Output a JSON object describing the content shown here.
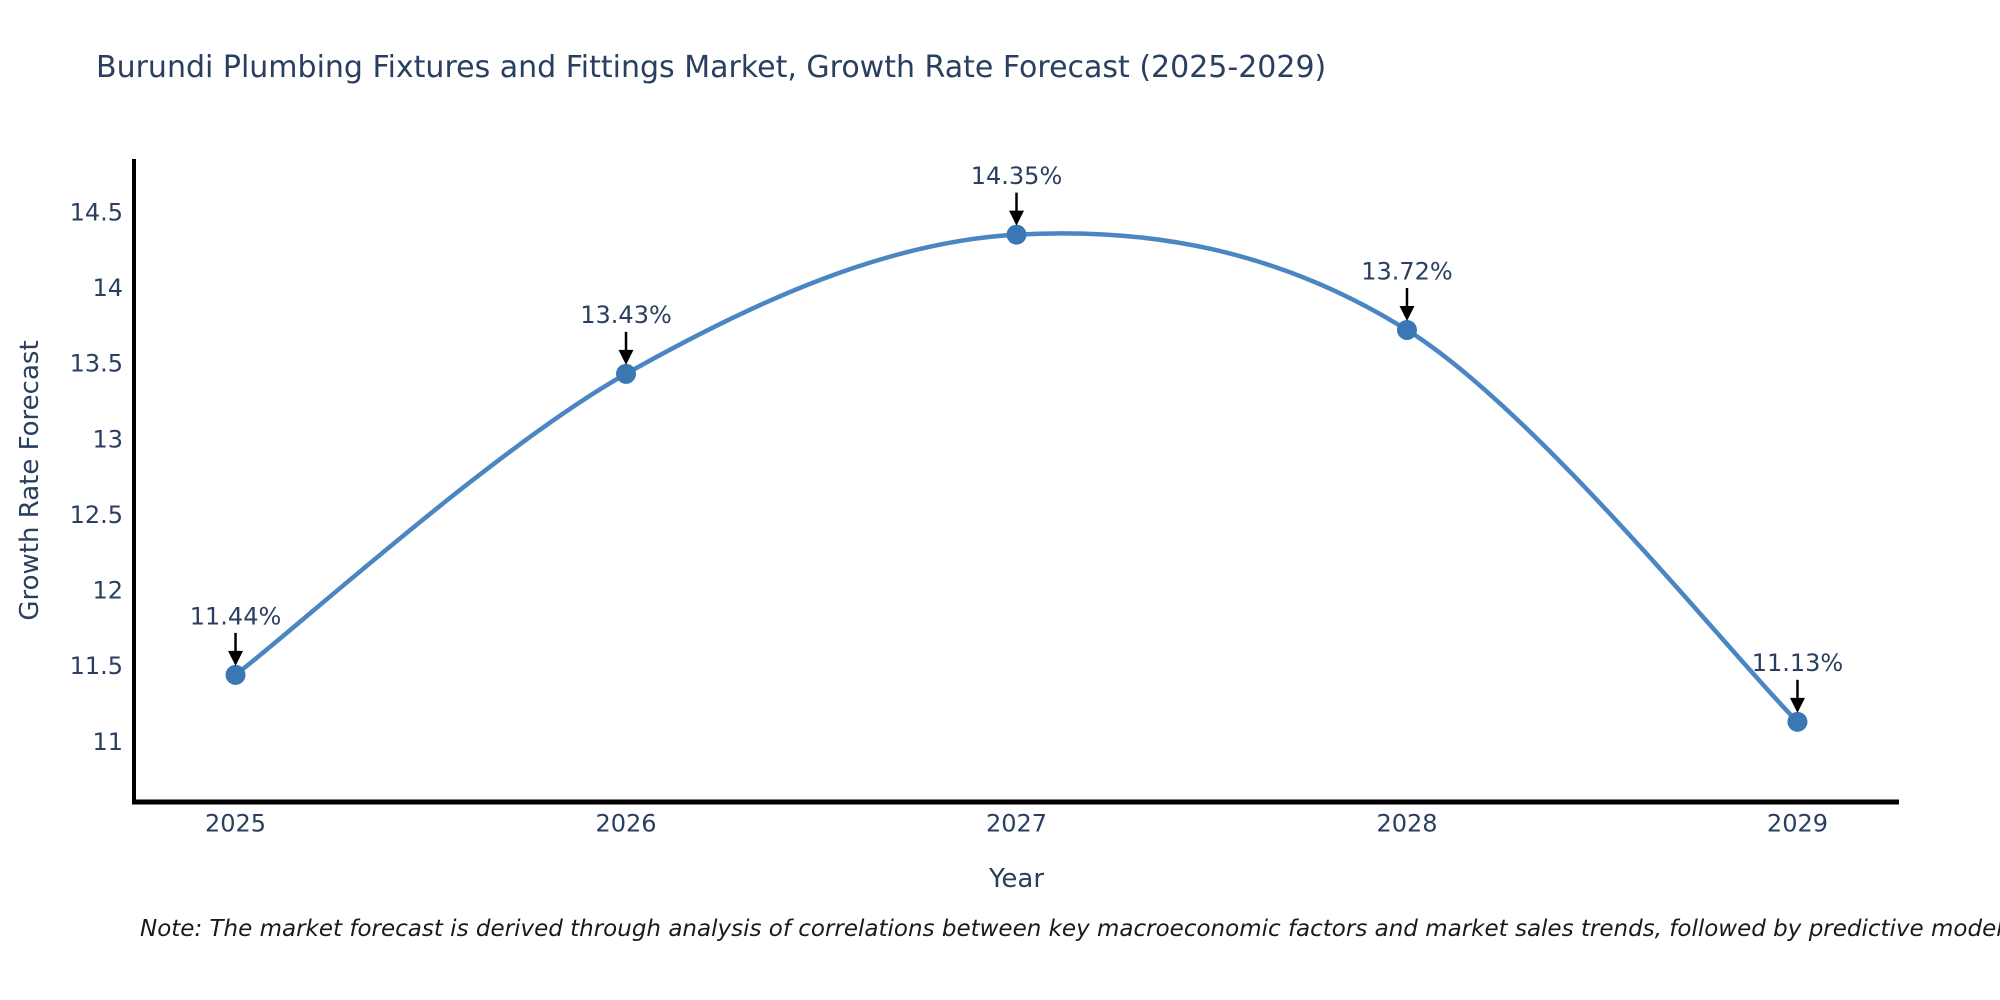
{
  "title": "Burundi Plumbing Fixtures and Fittings Market, Growth Rate Forecast (2025-2029)",
  "note": "Note: The market forecast is derived through analysis of correlations between key macroeconomic factors and market sales trends, followed by predictive modeling to project future sal",
  "chart_data": {
    "type": "line",
    "line_shape": "spline",
    "title": "Burundi Plumbing Fixtures and Fittings Market, Growth Rate Forecast (2025-2029)",
    "xlabel": "Year",
    "ylabel": "Growth Rate Forecast",
    "x": [
      2025,
      2026,
      2027,
      2028,
      2029
    ],
    "y": [
      11.44,
      13.43,
      14.35,
      13.72,
      11.13
    ],
    "point_labels": [
      "11.44%",
      "13.43%",
      "14.35%",
      "13.72%",
      "11.13%"
    ],
    "xtick_labels": [
      "2025",
      "2026",
      "2027",
      "2028",
      "2029"
    ],
    "xticks": [
      2025,
      2026,
      2027,
      2028,
      2029
    ],
    "ytick_labels": [
      "11",
      "11.5",
      "12",
      "12.5",
      "13",
      "13.5",
      "14",
      "14.5"
    ],
    "yticks": [
      11,
      11.5,
      12,
      12.5,
      13,
      13.5,
      14,
      14.5
    ],
    "xlim": [
      2024.74,
      2029.26
    ],
    "ylim": [
      10.6,
      14.85
    ],
    "grid": false,
    "legend": "none",
    "annotations_have_arrows": true
  },
  "colors": {
    "line": "#4a86c2",
    "marker": "#3b78b3",
    "axis_line": "#000000",
    "chart_text": "#2a3f5f",
    "annotation_text": "#2a3f5f",
    "annotation_arrow": "#000000",
    "note_text": "#1a1a1a",
    "background": "#ffffff"
  }
}
